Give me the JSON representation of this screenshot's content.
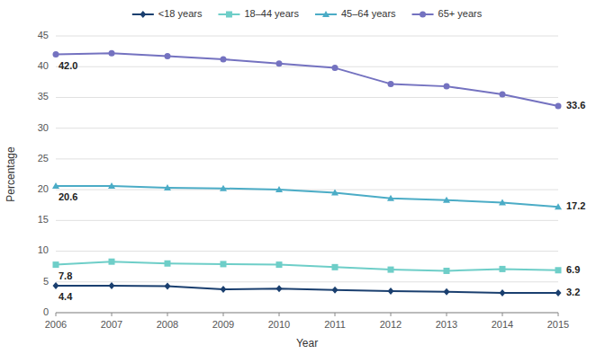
{
  "chart_data": {
    "type": "line",
    "x_label": "Year",
    "y_label": "Percentage",
    "x": [
      2006,
      2007,
      2008,
      2009,
      2010,
      2011,
      2012,
      2013,
      2014,
      2015
    ],
    "series": [
      {
        "name": "<18 years",
        "color": "#1a3f6f",
        "marker": "diamond",
        "values": [
          4.4,
          4.4,
          4.3,
          3.8,
          3.9,
          3.7,
          3.5,
          3.4,
          3.2,
          3.2
        ]
      },
      {
        "name": "18–44 years",
        "color": "#6ecec8",
        "marker": "square",
        "values": [
          7.8,
          8.3,
          8.0,
          7.9,
          7.8,
          7.4,
          7.0,
          6.8,
          7.1,
          6.9
        ]
      },
      {
        "name": "45–64 years",
        "color": "#4bacc6",
        "marker": "triangle",
        "values": [
          20.6,
          20.6,
          20.3,
          20.2,
          20.0,
          19.5,
          18.6,
          18.3,
          17.9,
          17.2
        ]
      },
      {
        "name": "65+ years",
        "color": "#7472c0",
        "marker": "circle",
        "values": [
          42.0,
          42.2,
          41.7,
          41.2,
          40.5,
          39.8,
          37.2,
          36.8,
          35.5,
          33.6
        ]
      }
    ],
    "annotations": [
      {
        "text": "4.4",
        "x": 2006,
        "y": 4.4
      },
      {
        "text": "3.2",
        "x": 2015,
        "y": 3.2
      },
      {
        "text": "7.8",
        "x": 2006,
        "y": 7.8
      },
      {
        "text": "6.9",
        "x": 2015,
        "y": 6.9
      },
      {
        "text": "20.6",
        "x": 2006,
        "y": 20.6
      },
      {
        "text": "17.2",
        "x": 2015,
        "y": 17.2
      },
      {
        "text": "42.0",
        "x": 2006,
        "y": 42.0
      },
      {
        "text": "33.6",
        "x": 2015,
        "y": 33.6
      }
    ],
    "xlim": [
      2006,
      2015
    ],
    "xticks": [
      2006,
      2007,
      2008,
      2009,
      2010,
      2011,
      2012,
      2013,
      2014,
      2015
    ],
    "ylim": [
      0,
      45
    ],
    "yticks": [
      0,
      5,
      10,
      15,
      20,
      25,
      30,
      35,
      40,
      45
    ],
    "grid": true,
    "legend": "top"
  }
}
